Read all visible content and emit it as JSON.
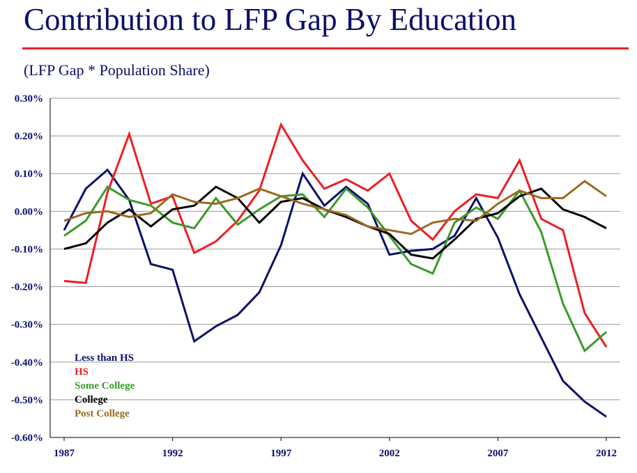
{
  "header": {
    "title": "Contribution to LFP Gap By Education",
    "subtitle": "(LFP Gap * Population Share)"
  },
  "colors": {
    "title": "#0b0f6b",
    "rule": "#e8202a",
    "axis_text": "#0b0f6b",
    "grid": "#9a9a9a"
  },
  "chart_data": {
    "type": "line",
    "title": "Contribution to LFP Gap By Education",
    "subtitle": "(LFP Gap * Population Share)",
    "xlabel": "",
    "ylabel": "",
    "x": [
      1987,
      1988,
      1989,
      1990,
      1991,
      1992,
      1993,
      1994,
      1995,
      1996,
      1997,
      1998,
      1999,
      2000,
      2001,
      2002,
      2003,
      2004,
      2005,
      2006,
      2007,
      2008,
      2009,
      2010,
      2011,
      2012
    ],
    "x_tick_labels": [
      "1987",
      "1992",
      "1997",
      "2002",
      "2007",
      "2012"
    ],
    "y_tick_labels": [
      "0.30%",
      "0.20%",
      "0.10%",
      "0.00%",
      "-0.10%",
      "-0.20%",
      "-0.30%",
      "-0.40%",
      "-0.50%",
      "-0.60%"
    ],
    "ylim": [
      -0.6,
      0.3
    ],
    "y_unit": "%",
    "grid": "horizontal",
    "legend_position": "bottom-left",
    "series": [
      {
        "name": "Less than HS",
        "color": "#0b0f6b",
        "values": [
          -0.05,
          0.06,
          0.11,
          0.03,
          -0.14,
          -0.155,
          -0.345,
          -0.305,
          -0.275,
          -0.215,
          -0.09,
          0.1,
          0.015,
          0.065,
          0.02,
          -0.115,
          -0.105,
          -0.1,
          -0.065,
          0.035,
          -0.07,
          -0.22,
          -0.335,
          -0.45,
          -0.505,
          -0.545
        ]
      },
      {
        "name": "HS",
        "color": "#ee1c25",
        "values": [
          -0.185,
          -0.19,
          0.05,
          0.205,
          0.02,
          0.04,
          -0.11,
          -0.08,
          -0.025,
          0.055,
          0.23,
          0.135,
          0.06,
          0.085,
          0.055,
          0.1,
          -0.025,
          -0.075,
          0.0,
          0.045,
          0.035,
          0.135,
          -0.02,
          -0.05,
          -0.27,
          -0.36
        ]
      },
      {
        "name": "Some College",
        "color": "#3a9a2a",
        "values": [
          -0.065,
          -0.025,
          0.065,
          0.03,
          0.015,
          -0.03,
          -0.045,
          0.035,
          -0.035,
          0.005,
          0.04,
          0.045,
          -0.015,
          0.06,
          0.01,
          -0.065,
          -0.14,
          -0.165,
          -0.03,
          0.01,
          -0.02,
          0.055,
          -0.055,
          -0.245,
          -0.37,
          -0.32
        ]
      },
      {
        "name": "College",
        "color": "#000000",
        "values": [
          -0.1,
          -0.085,
          -0.03,
          0.005,
          -0.04,
          0.005,
          0.015,
          0.065,
          0.035,
          -0.03,
          0.025,
          0.035,
          0.005,
          -0.015,
          -0.04,
          -0.06,
          -0.115,
          -0.125,
          -0.075,
          -0.02,
          -0.005,
          0.04,
          0.06,
          0.005,
          -0.015,
          -0.045
        ]
      },
      {
        "name": "Post College",
        "color": "#9a6a1e",
        "values": [
          -0.025,
          -0.005,
          0.0,
          -0.015,
          -0.005,
          0.045,
          0.025,
          0.02,
          0.035,
          0.06,
          0.04,
          0.02,
          0.005,
          -0.01,
          -0.04,
          -0.05,
          -0.06,
          -0.03,
          -0.02,
          -0.025,
          0.02,
          0.055,
          0.035,
          0.035,
          0.08,
          0.04
        ]
      }
    ]
  }
}
